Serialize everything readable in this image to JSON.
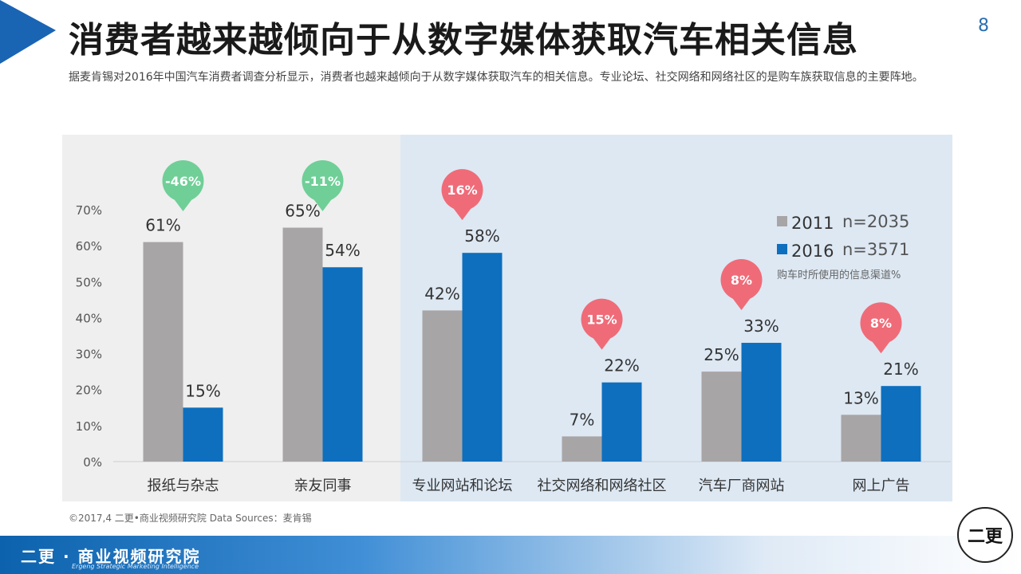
{
  "page": {
    "title": "消费者越来越倾向于从数字媒体获取汽车相关信息",
    "page_number": "8",
    "subtitle": "据麦肯锡对2016年中国汽车消费者调查分析显示，消费者也越来越倾向于从数字媒体获取汽车的相关信息。专业论坛、社交网络和网络社区的是购车族获取信息的主要阵地。",
    "footer_credit": "©2017,4 二更•商业视频研究院  Data Sources：麦肯锡",
    "brand": {
      "name": "二更 · 商业视频研究院",
      "tagline": "Ergeng Strategic Marketing Intelligence",
      "seal_text": "二更"
    }
  },
  "colors": {
    "series_2011": "#a8a5a6",
    "series_2016": "#0d6fbe",
    "change_green": "#6fcf97",
    "change_red": "#f06b78",
    "panel_left": "#efefef",
    "panel_right": "#dde8f3",
    "accent": "#0d6fbe"
  },
  "chart_data": {
    "type": "bar",
    "categories": [
      "报纸与杂志",
      "亲友同事",
      "专业网站和论坛",
      "社交网络和网络社区",
      "汽车厂商网站",
      "网上广告"
    ],
    "series": [
      {
        "name": "2011",
        "sample": "n=2035",
        "values": [
          61,
          65,
          42,
          7,
          25,
          13
        ]
      },
      {
        "name": "2016",
        "sample": "n=3571",
        "values": [
          15,
          54,
          58,
          22,
          33,
          21
        ]
      }
    ],
    "changes": [
      "-46%",
      "-11%",
      "16%",
      "15%",
      "8%",
      "8%"
    ],
    "change_direction": [
      "down",
      "down",
      "up",
      "up",
      "up",
      "up"
    ],
    "y_ticks": [
      "0%",
      "10%",
      "20%",
      "30%",
      "40%",
      "50%",
      "60%",
      "70%"
    ],
    "ylim": [
      0,
      70
    ],
    "unit": "%",
    "legend_note": "购车时所使用的信息渠道%",
    "legend_position": "top-right"
  }
}
